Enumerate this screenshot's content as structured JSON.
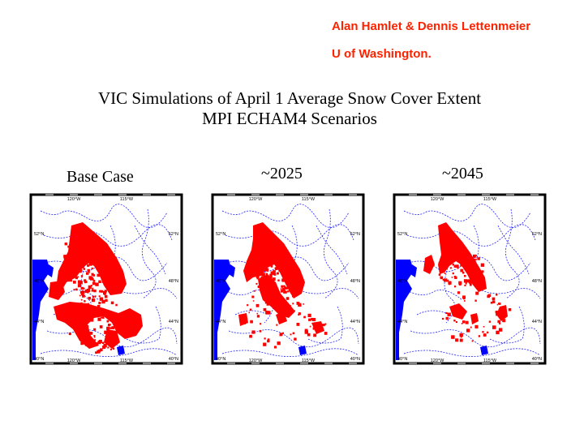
{
  "authors": [
    "Alan Hamlet & Dennis Lettenmeier",
    "U of Washington."
  ],
  "title_lines": [
    "VIC Simulations of April 1 Average Snow Cover Extent",
    "MPI ECHAM4 Scenarios"
  ],
  "panels": [
    {
      "label": "Base Case",
      "top_ticks": [
        "120°W",
        "115°W"
      ],
      "bottom_ticks": [
        "120°W",
        "115°W"
      ],
      "lat_left": [
        "52°N",
        "48°N",
        "44°N",
        "40°N"
      ],
      "lat_right": [
        "52°N",
        "48°N",
        "44°N",
        "40°N"
      ]
    },
    {
      "label": "~2025",
      "top_ticks": [
        "120°W",
        "115°W"
      ],
      "bottom_ticks": [
        "120°W",
        "115°W"
      ],
      "lat_left": [
        "52°N",
        "48°N",
        "44°N",
        "40°N"
      ],
      "lat_right": [
        "52°N",
        "48°N",
        "44°N",
        "40°N"
      ]
    },
    {
      "label": "~2045",
      "top_ticks": [
        "120°W",
        "115°W"
      ],
      "bottom_ticks": [
        "120°W",
        "115°W"
      ],
      "lat_left": [
        "52°N",
        "48°N",
        "44°N",
        "40°N"
      ],
      "lat_right": [
        "52°N",
        "48°N",
        "44°N",
        "40°N"
      ]
    }
  ],
  "legend_colors": {
    "snow": "#ff0000",
    "water": "#0000ff",
    "rivers": "#0000ff"
  }
}
